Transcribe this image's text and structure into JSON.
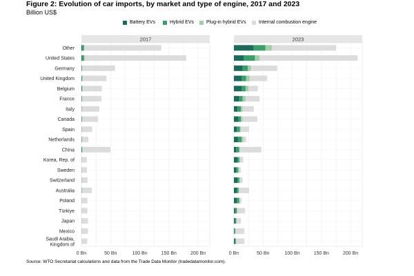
{
  "header": {
    "title": "Figure 2: Evolution of car imports, by market and type of engine, 2017 and 2023",
    "subtitle": "Billion US$"
  },
  "legend": {
    "items": [
      {
        "label": "Battery EVs",
        "color": "#1b6b5c"
      },
      {
        "label": "Hybrid EVs",
        "color": "#3a9e6b"
      },
      {
        "label": "Plug-in hybrid EVs",
        "color": "#9fcfa4"
      },
      {
        "label": "Internal combustion engine",
        "color": "#dcdcdc"
      }
    ]
  },
  "footer": {
    "source": "Source: WTO Secretariat calculations and data from the Trade Data Monitor (tradedatamonitor.com)."
  },
  "chart_data": {
    "type": "bar",
    "orientation": "horizontal",
    "stacked": true,
    "grid": true,
    "legend_position": "top",
    "categories": [
      "Other",
      "United States",
      "Germany",
      "United Kingdom",
      "Belgium",
      "France",
      "Italy",
      "Canada",
      "Spain",
      "Netherlands",
      "China",
      "Korea, Rep. of",
      "Sweden",
      "Switzerland",
      "Australia",
      "Poland",
      "Türkiye",
      "Japan",
      "Mexico",
      "Saudi Arabia, Kingdom of"
    ],
    "xlim": [
      0,
      220
    ],
    "x_ticks": [
      "0 Bn",
      "50 Bn",
      "100 Bn",
      "150 Bn",
      "200 Bn"
    ],
    "x_tick_values": [
      0,
      50,
      100,
      150,
      200
    ],
    "panels": [
      {
        "title": "2017",
        "series": [
          {
            "name": "Battery EVs",
            "values": [
              1.5,
              1.5,
              0.5,
              0.5,
              1,
              0.5,
              0.2,
              0.5,
              0.1,
              0.5,
              0.5,
              0.1,
              0.1,
              0.1,
              0.1,
              0.1,
              0.1,
              0.1,
              0.1,
              0
            ]
          },
          {
            "name": "Hybrid EVs",
            "values": [
              3,
              3,
              0.5,
              1,
              0.5,
              0.5,
              0.3,
              0.5,
              0.3,
              0.2,
              1,
              0.2,
              0.2,
              0.1,
              0.5,
              0.1,
              0.1,
              0.1,
              0.1,
              0
            ]
          },
          {
            "name": "Plug-in hybrid EVs",
            "values": [
              0.5,
              1,
              0.5,
              0.5,
              0.5,
              0.5,
              0.2,
              0.5,
              0.1,
              0.3,
              0.5,
              0.1,
              0.2,
              0.3,
              0.1,
              0.1,
              0.1,
              0.1,
              0.1,
              0
            ]
          },
          {
            "name": "Internal combustion engine",
            "values": [
              132,
              174,
              56,
              41,
              33,
              33,
              30,
              27,
              18,
              11,
              48,
              9,
              9,
              10,
              17,
              10,
              10,
              11,
              11,
              10
            ]
          }
        ]
      },
      {
        "title": "2023",
        "series": [
          {
            "name": "Battery EVs",
            "values": [
              34,
              17,
              15,
              13,
              13,
              9,
              6,
              8,
              5,
              7,
              4,
              6,
              4,
              6,
              5,
              5,
              2,
              2,
              1,
              2
            ]
          },
          {
            "name": "Hybrid EVs",
            "values": [
              20,
              19,
              9,
              8,
              7,
              6,
              6,
              4,
              5,
              6,
              5,
              3,
              3,
              3,
              3,
              4,
              3,
              2,
              1,
              1
            ]
          },
          {
            "name": "Plug-in hybrid EVs",
            "values": [
              11,
              8,
              5,
              6,
              5,
              5,
              3,
              3,
              2,
              3,
              1,
              2,
              2,
              2,
              1,
              1,
              1,
              1,
              1,
              1
            ]
          },
          {
            "name": "Internal combustion engine",
            "values": [
              110,
              168,
              45,
              30,
              16,
              24,
              19,
              25,
              14,
              5,
              37,
              5,
              3,
              4,
              17,
              3,
              13,
              7,
              15,
              14
            ]
          }
        ]
      }
    ]
  }
}
